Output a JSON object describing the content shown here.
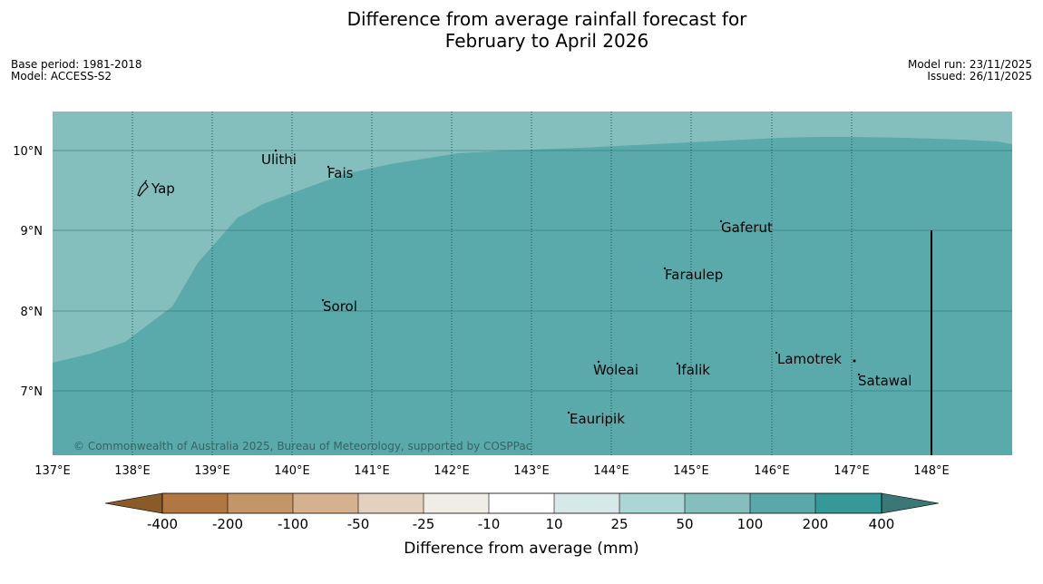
{
  "title": {
    "line1": "Difference from average rainfall forecast for",
    "line2": "February to April 2026"
  },
  "meta_left": {
    "base_period": "Base period: 1981-2018",
    "model": "Model: ACCESS-S2"
  },
  "meta_right": {
    "model_run": "Model run: 23/11/2025",
    "issued": "Issued: 26/11/2025"
  },
  "map": {
    "lat_labels": [
      "10°N",
      "9°N",
      "8°N",
      "7°N"
    ],
    "lon_labels": [
      "137°E",
      "138°E",
      "139°E",
      "140°E",
      "141°E",
      "142°E",
      "143°E",
      "144°E",
      "145°E",
      "146°E",
      "147°E",
      "148°E"
    ],
    "places": [
      "Yap",
      "Ulithi",
      "Fais",
      "Gaferut",
      "Faraulep",
      "Sorol",
      "Woleai",
      "Ifalik",
      "Lamotrek",
      "Satawal",
      "Eauripik"
    ],
    "copyright": "© Commonwealth of Australia 2025, Bureau of Meteorology, supported by COSPPac"
  },
  "colorbar": {
    "ticks": [
      "-400",
      "-200",
      "-100",
      "-50",
      "-25",
      "-10",
      "10",
      "25",
      "50",
      "100",
      "200",
      "400"
    ],
    "title": "Difference from average (mm)",
    "colors": {
      "lt_minus400": "#8a5a28",
      "c1": "#b07840",
      "c2": "#c49566",
      "c3": "#d5b18f",
      "c4": "#e3d0bd",
      "c5": "#f0ece6",
      "c6": "#ffffff",
      "c7": "#d5e9e8",
      "c8": "#abd6d5",
      "c9": "#84bfbe",
      "c10": "#5aa9aa",
      "c11": "#35999a",
      "gt_400": "#3a7776"
    }
  }
}
